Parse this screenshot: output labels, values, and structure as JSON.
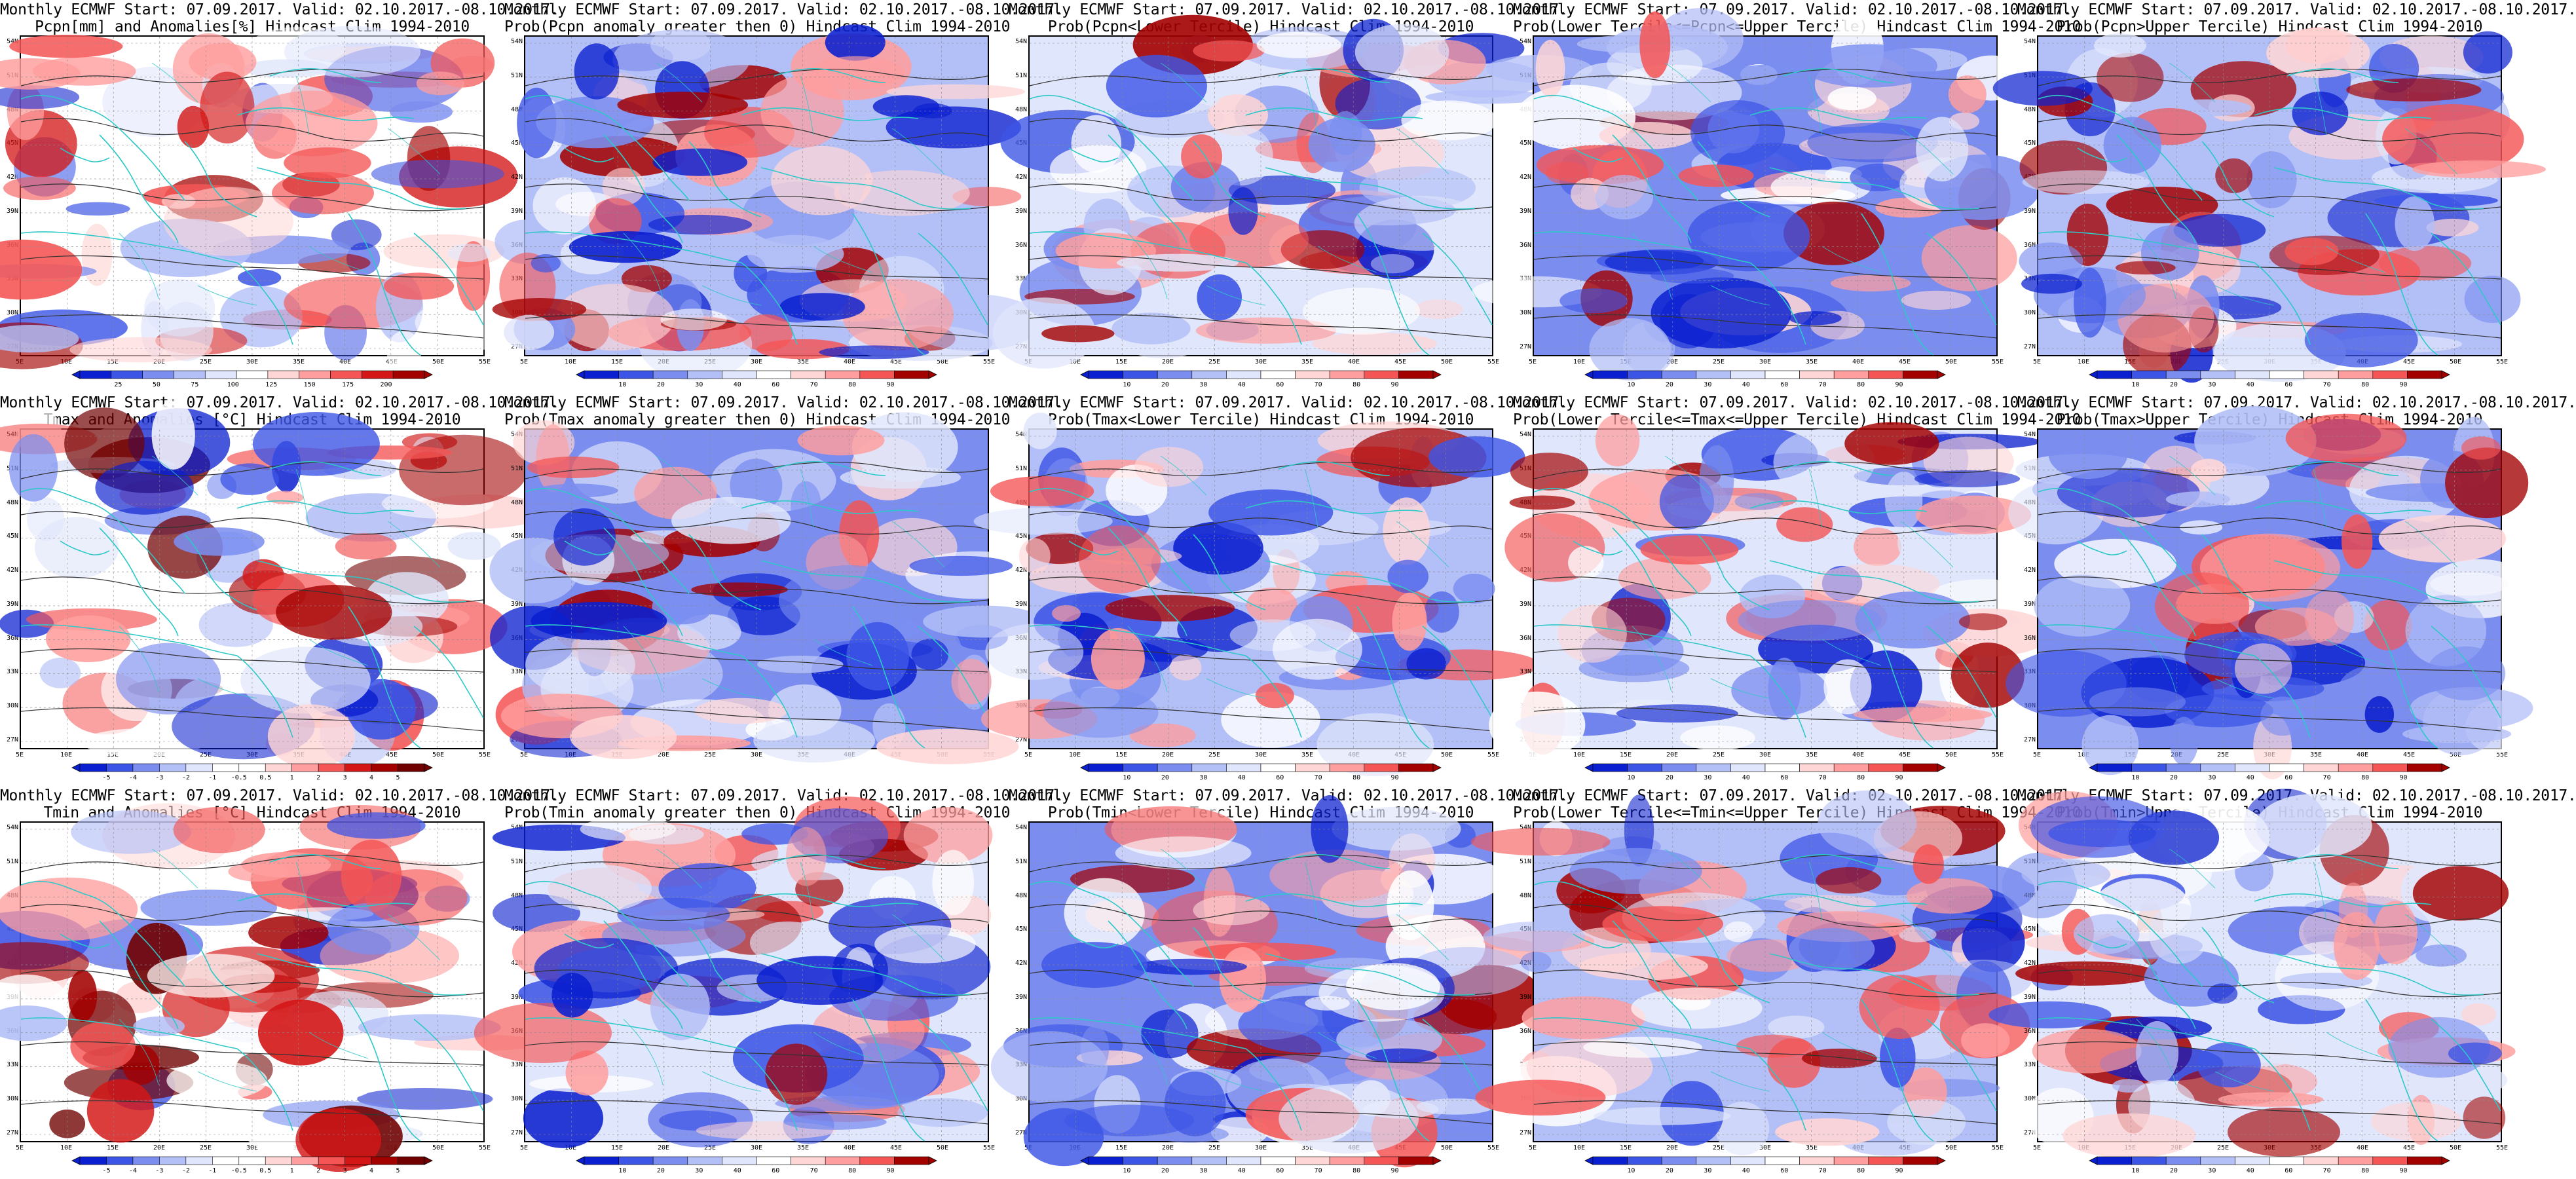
{
  "axes": {
    "lat_labels": [
      "54N",
      "51N",
      "48N",
      "45N",
      "42N",
      "39N",
      "36N",
      "33N",
      "30N",
      "27N"
    ],
    "lon_labels": [
      "5E",
      "10E",
      "15E",
      "20E",
      "25E",
      "30E",
      "35E",
      "40E",
      "45E",
      "50E",
      "55E"
    ]
  },
  "colorbar_ticks": {
    "precip_anom": [
      "25",
      "50",
      "75",
      "100",
      "125",
      "150",
      "175",
      "200"
    ],
    "prob": [
      "10",
      "20",
      "30",
      "40",
      "60",
      "70",
      "80",
      "90"
    ],
    "temp_anom": [
      "-5",
      "-4",
      "-3",
      "-2",
      "-1",
      "-0.5",
      "0.5",
      "1",
      "2",
      "3",
      "4",
      "5"
    ]
  },
  "panels": [
    {
      "row": 0,
      "col": 0,
      "title1": "Monthly ECMWF Start: 07.09.2017. Valid: 02.10.2017.-08.10.2017.",
      "title2": "Pcpn[mm] and Anomalies[%] Hindcast Clim 1994-2010",
      "scale": "precip_anom",
      "has_colorbar": true
    },
    {
      "row": 0,
      "col": 1,
      "title1": "Monthly ECMWF Start: 07.09.2017. Valid: 02.10.2017.-08.10.2017.",
      "title2": "Prob(Pcpn anomaly greater then 0) Hindcast Clim 1994-2010",
      "scale": "prob",
      "has_colorbar": true
    },
    {
      "row": 0,
      "col": 2,
      "title1": "Monthly ECMWF Start: 07.09.2017. Valid: 02.10.2017.-08.10.2017.",
      "title2": "Prob(Pcpn<Lower Tercile) Hindcast Clim 1994-2010",
      "scale": "prob",
      "has_colorbar": true
    },
    {
      "row": 0,
      "col": 3,
      "title1": "Monthly ECMWF Start: 07.09.2017. Valid: 02.10.2017.-08.10.2017.",
      "title2": "Prob(Lower Tercile<=Pcpn<=Upper Tercile) Hindcast Clim 1994-2010",
      "scale": "prob",
      "has_colorbar": true
    },
    {
      "row": 0,
      "col": 4,
      "title1": "Monthly ECMWF Start: 07.09.2017. Valid: 02.10.2017.-08.10.2017.",
      "title2": "Prob(Pcpn>Upper Tercile) Hindcast Clim 1994-2010",
      "scale": "prob",
      "has_colorbar": true
    },
    {
      "row": 1,
      "col": 0,
      "title1": "Monthly ECMWF Start: 07.09.2017. Valid: 02.10.2017.-08.10.2017.",
      "title2": "Tmax and Anomalies [°C] Hindcast Clim 1994-2010",
      "scale": "temp_anom",
      "has_colorbar": true
    },
    {
      "row": 1,
      "col": 1,
      "title1": "Monthly ECMWF Start: 07.09.2017. Valid: 02.10.2017.-08.10.2017.",
      "title2": "Prob(Tmax anomaly greater then 0) Hindcast Clim 1994-2010",
      "scale": "prob",
      "has_colorbar": false
    },
    {
      "row": 1,
      "col": 2,
      "title1": "Monthly ECMWF Start: 07.09.2017. Valid: 02.10.2017.-08.10.2017.",
      "title2": "Prob(Tmax<Lower Tercile) Hindcast Clim 1994-2010",
      "scale": "prob",
      "has_colorbar": true
    },
    {
      "row": 1,
      "col": 3,
      "title1": "Monthly ECMWF Start: 07.09.2017. Valid: 02.10.2017.-08.10.2017.",
      "title2": "Prob(Lower Tercile<=Tmax<=Upper Tercile) Hindcast Clim 1994-2010",
      "scale": "prob",
      "has_colorbar": true
    },
    {
      "row": 1,
      "col": 4,
      "title1": "Monthly ECMWF Start: 07.09.2017. Valid: 02.10.2017.-08.10.2017.",
      "title2": "Prob(Tmax>Upper Tercile) Hindcast Clim 1994-2010",
      "scale": "prob",
      "has_colorbar": true
    },
    {
      "row": 2,
      "col": 0,
      "title1": "Monthly ECMWF Start: 07.09.2017. Valid: 02.10.2017.-08.10.2017.",
      "title2": "Tmin and Anomalies [°C] Hindcast Clim 1994-2010",
      "scale": "temp_anom",
      "has_colorbar": true
    },
    {
      "row": 2,
      "col": 1,
      "title1": "Monthly ECMWF Start: 07.09.2017. Valid: 02.10.2017.-08.10.2017.",
      "title2": "Prob(Tmin anomaly greater then 0) Hindcast Clim 1994-2010",
      "scale": "prob",
      "has_colorbar": true
    },
    {
      "row": 2,
      "col": 2,
      "title1": "Monthly ECMWF Start: 07.09.2017. Valid: 02.10.2017.-08.10.2017.",
      "title2": "Prob(Tmin<Lower Tercile) Hindcast Clim 1994-2010",
      "scale": "prob",
      "has_colorbar": true
    },
    {
      "row": 2,
      "col": 3,
      "title1": "Monthly ECMWF Start: 07.09.2017. Valid: 02.10.2017.-08.10.2017.",
      "title2": "Prob(Lower Tercile<=Tmin<=Upper Tercile) Hindcast Clim 1994-2010",
      "scale": "prob",
      "has_colorbar": true
    },
    {
      "row": 2,
      "col": 4,
      "title1": "Monthly ECMWF Start: 07.09.2017. Valid: 02.10.2017.-08.10.2017.",
      "title2": "Prob(Tmin>Upper Tercile) Hindcast Clim 1994-2010",
      "scale": "prob",
      "has_colorbar": true
    }
  ],
  "colors": {
    "palette_precip_anom": [
      "#0a1fcf",
      "#3d55e6",
      "#7b8ef0",
      "#b3bff7",
      "#e0e6fb",
      "#ffffff",
      "#ffd6d6",
      "#ff9e9e",
      "#f55555",
      "#d41616",
      "#a30000"
    ],
    "palette_prob": [
      "#0a1fcf",
      "#3d55e6",
      "#7b8ef0",
      "#b3bff7",
      "#e0e6fb",
      "#ffffff",
      "#ffd6d6",
      "#ff9e9e",
      "#f55555",
      "#a30000"
    ],
    "palette_temp_anom": [
      "#0a1fcf",
      "#3d55e6",
      "#7b8ef0",
      "#b3bff7",
      "#e0e6fb",
      "#ffffff",
      "#ffffff",
      "#ffd6d6",
      "#ff9e9e",
      "#f55555",
      "#d41616",
      "#a30000",
      "#700000"
    ],
    "coastline": "#2ec8c8",
    "contour": "#333333"
  }
}
